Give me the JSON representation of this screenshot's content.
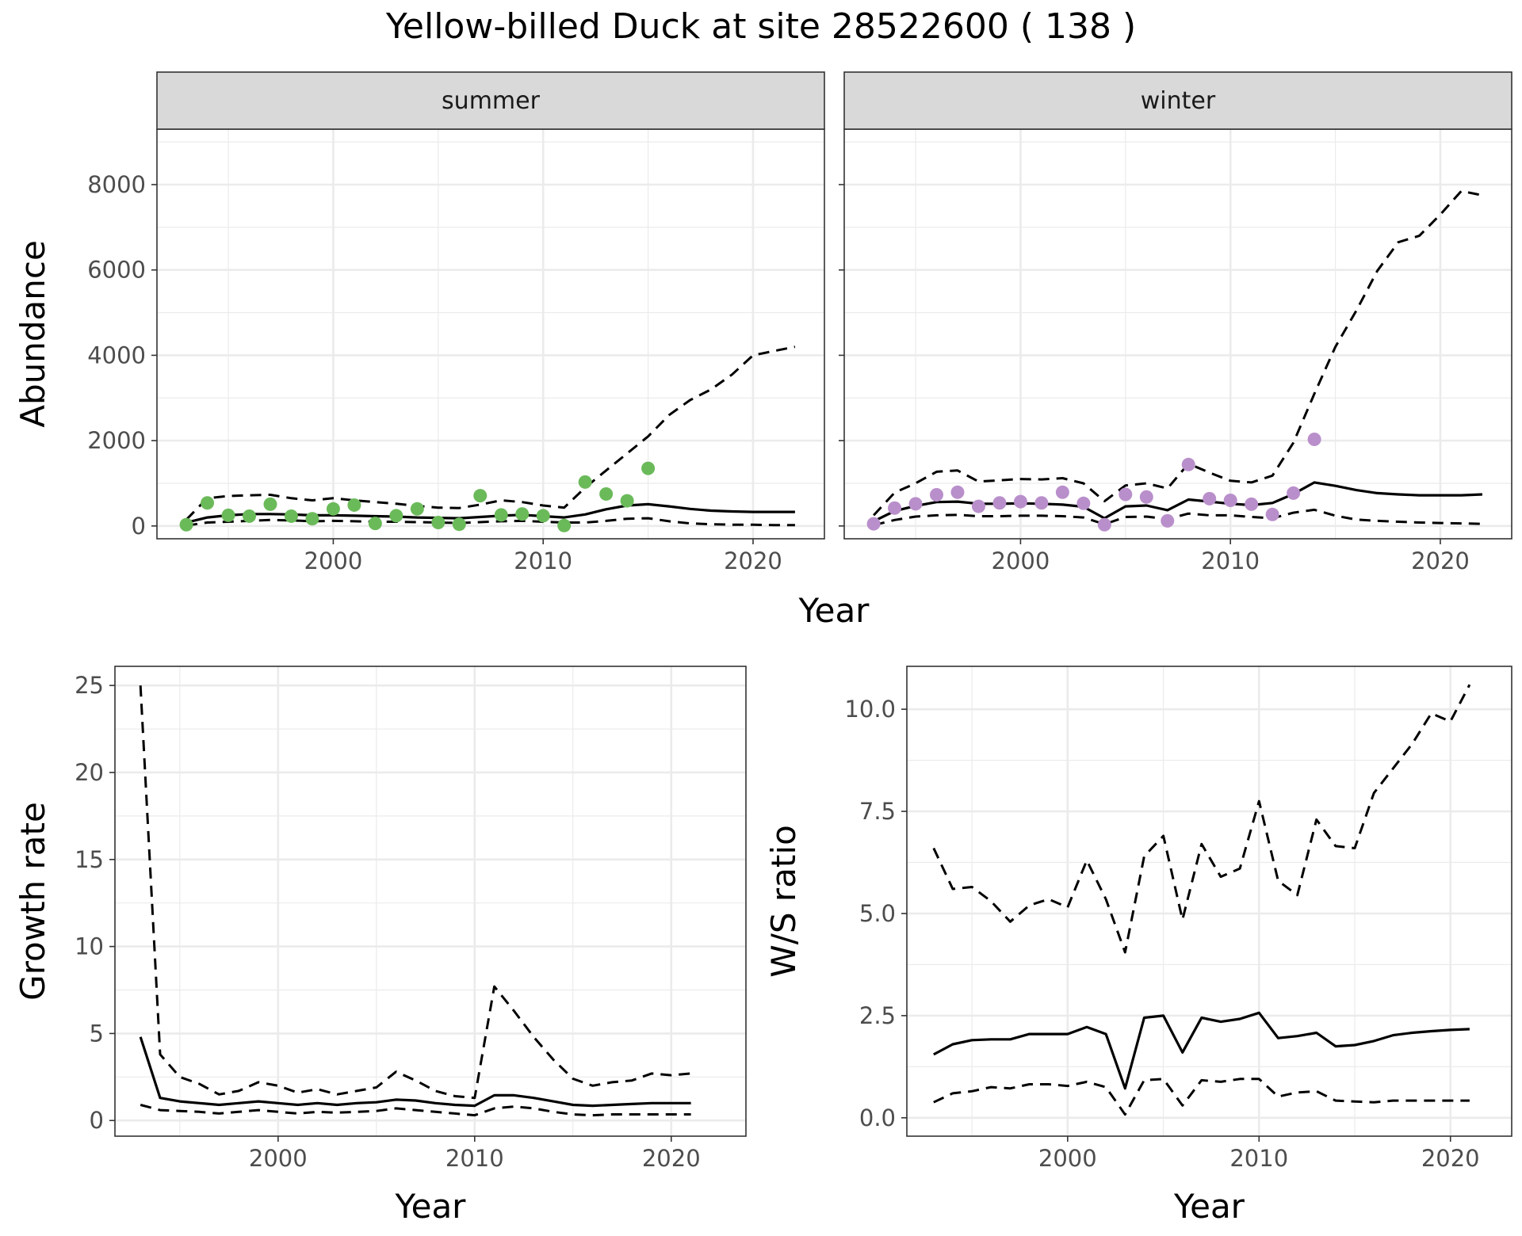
{
  "title": "Yellow-billed Duck at site 28522600 ( 138 )",
  "colors": {
    "summer": "#6BBA5A",
    "winter": "#B98FCB",
    "line": "#000000",
    "strip_fill": "#D9D9D9"
  },
  "chart_data": [
    {
      "id": "abundance",
      "type": "line",
      "ylabel": "Abundance",
      "xlabel": "Year",
      "xlim": [
        1991.6,
        2023.4
      ],
      "ylim": [
        -300,
        9300
      ],
      "x_ticks": [
        2000,
        2010,
        2020
      ],
      "x_tick_labels": [
        "2000",
        "2010",
        "2020"
      ],
      "y_ticks": [
        0,
        2000,
        4000,
        6000,
        8000
      ],
      "y_tick_labels": [
        "0",
        "2000",
        "4000",
        "6000",
        "8000"
      ],
      "grid": true,
      "panels": [
        {
          "strip": "summer",
          "x": [
            1993,
            1994,
            1995,
            1996,
            1997,
            1998,
            1999,
            2000,
            2001,
            2002,
            2003,
            2004,
            2005,
            2006,
            2007,
            2008,
            2009,
            2010,
            2011,
            2012,
            2013,
            2014,
            2015,
            2016,
            2017,
            2018,
            2019,
            2020,
            2021,
            2022
          ],
          "observed": [
            30,
            540,
            250,
            230,
            510,
            230,
            170,
            400,
            490,
            60,
            240,
            400,
            80,
            40,
            710,
            260,
            280,
            240,
            10,
            1030,
            750,
            590,
            1350,
            null,
            null,
            null,
            null,
            null,
            null,
            null
          ],
          "series": [
            {
              "role": "estimate",
              "values": [
                80,
                200,
                250,
                280,
                280,
                270,
                250,
                250,
                240,
                230,
                220,
                200,
                190,
                180,
                210,
                240,
                260,
                230,
                200,
                270,
                390,
                480,
                510,
                460,
                400,
                360,
                340,
                330,
                330,
                330
              ]
            },
            {
              "role": "upper",
              "values": [
                150,
                650,
                700,
                720,
                730,
                650,
                600,
                650,
                600,
                560,
                520,
                470,
                430,
                420,
                500,
                600,
                560,
                480,
                430,
                900,
                1300,
                1700,
                2100,
                2600,
                2950,
                3200,
                3550,
                4000,
                4100,
                4200
              ]
            },
            {
              "role": "lower",
              "values": [
                10,
                80,
                100,
                120,
                140,
                130,
                110,
                120,
                110,
                100,
                100,
                90,
                80,
                70,
                90,
                110,
                120,
                100,
                80,
                80,
                120,
                170,
                180,
                110,
                60,
                40,
                30,
                30,
                20,
                20
              ]
            }
          ]
        },
        {
          "strip": "winter",
          "x": [
            1993,
            1994,
            1995,
            1996,
            1997,
            1998,
            1999,
            2000,
            2001,
            2002,
            2003,
            2004,
            2005,
            2006,
            2007,
            2008,
            2009,
            2010,
            2011,
            2012,
            2013,
            2014,
            2015,
            2016,
            2017,
            2018,
            2019,
            2020,
            2021,
            2022
          ],
          "observed": [
            50,
            420,
            520,
            730,
            790,
            460,
            540,
            570,
            540,
            790,
            530,
            30,
            740,
            680,
            120,
            1440,
            640,
            600,
            510,
            270,
            770,
            2030,
            null,
            null,
            null,
            null,
            null,
            null,
            null,
            null
          ],
          "series": [
            {
              "role": "estimate",
              "values": [
                110,
                350,
                470,
                560,
                570,
                520,
                520,
                530,
                520,
                500,
                450,
                180,
                460,
                480,
                370,
                620,
                570,
                520,
                490,
                540,
                750,
                1020,
                940,
                840,
                770,
                740,
                720,
                720,
                720,
                740
              ]
            },
            {
              "role": "upper",
              "values": [
                250,
                780,
                1000,
                1270,
                1300,
                1040,
                1070,
                1100,
                1090,
                1120,
                1000,
                580,
                950,
                1000,
                880,
                1460,
                1250,
                1060,
                1020,
                1180,
                1950,
                3100,
                4200,
                5050,
                5980,
                6650,
                6800,
                7300,
                7850,
                7750
              ]
            },
            {
              "role": "lower",
              "values": [
                20,
                140,
                220,
                250,
                260,
                230,
                230,
                240,
                240,
                230,
                200,
                40,
                210,
                220,
                160,
                290,
                250,
                250,
                210,
                180,
                310,
                380,
                240,
                150,
                120,
                100,
                80,
                70,
                60,
                50
              ]
            }
          ]
        }
      ]
    },
    {
      "id": "growth",
      "type": "line",
      "ylabel": "Growth rate",
      "xlabel": "Year",
      "xlim": [
        1991.7,
        2023.8
      ],
      "ylim": [
        -0.9,
        26.1
      ],
      "x_ticks": [
        2000,
        2010,
        2020
      ],
      "x_tick_labels": [
        "2000",
        "2010",
        "2020"
      ],
      "y_ticks": [
        0,
        5,
        10,
        15,
        20,
        25
      ],
      "y_tick_labels": [
        "0",
        "5",
        "10",
        "15",
        "20",
        "25"
      ],
      "grid": true,
      "x": [
        1993,
        1994,
        1995,
        1996,
        1997,
        1998,
        1999,
        2000,
        2001,
        2002,
        2003,
        2004,
        2005,
        2006,
        2007,
        2008,
        2009,
        2010,
        2011,
        2012,
        2013,
        2014,
        2015,
        2016,
        2017,
        2018,
        2019,
        2020,
        2021
      ],
      "series": [
        {
          "role": "estimate",
          "values": [
            4.8,
            1.3,
            1.1,
            1.0,
            0.9,
            1.0,
            1.1,
            1.0,
            0.9,
            1.0,
            0.9,
            1.0,
            1.05,
            1.2,
            1.15,
            1.0,
            0.9,
            0.85,
            1.45,
            1.45,
            1.3,
            1.1,
            0.9,
            0.85,
            0.9,
            0.95,
            1.0,
            1.0,
            1.0
          ]
        },
        {
          "role": "upper",
          "values": [
            25.0,
            3.8,
            2.5,
            2.1,
            1.5,
            1.7,
            2.2,
            2.0,
            1.6,
            1.8,
            1.5,
            1.7,
            1.9,
            2.8,
            2.3,
            1.7,
            1.4,
            1.3,
            7.7,
            6.3,
            4.8,
            3.5,
            2.4,
            2.0,
            2.2,
            2.3,
            2.7,
            2.6,
            2.7
          ]
        },
        {
          "role": "lower",
          "values": [
            0.9,
            0.6,
            0.55,
            0.5,
            0.4,
            0.5,
            0.6,
            0.5,
            0.4,
            0.5,
            0.45,
            0.5,
            0.55,
            0.7,
            0.6,
            0.5,
            0.4,
            0.3,
            0.7,
            0.8,
            0.7,
            0.5,
            0.35,
            0.3,
            0.35,
            0.35,
            0.35,
            0.35,
            0.35
          ]
        }
      ]
    },
    {
      "id": "ratio",
      "type": "line",
      "ylabel": "W/S ratio",
      "xlabel": "Year",
      "xlim": [
        1991.6,
        2023.2
      ],
      "ylim": [
        -0.45,
        11.05
      ],
      "x_ticks": [
        2000,
        2010,
        2020
      ],
      "x_tick_labels": [
        "2000",
        "2010",
        "2020"
      ],
      "y_ticks": [
        0,
        2.5,
        5,
        7.5,
        10
      ],
      "y_tick_labels": [
        "0.0",
        "2.5",
        "5.0",
        "7.5",
        "10.0"
      ],
      "grid": true,
      "x": [
        1993,
        1994,
        1995,
        1996,
        1997,
        1998,
        1999,
        2000,
        2001,
        2002,
        2003,
        2004,
        2005,
        2006,
        2007,
        2008,
        2009,
        2010,
        2011,
        2012,
        2013,
        2014,
        2015,
        2016,
        2017,
        2018,
        2019,
        2020,
        2021
      ],
      "series": [
        {
          "role": "estimate",
          "values": [
            1.55,
            1.8,
            1.9,
            1.92,
            1.92,
            2.05,
            2.05,
            2.05,
            2.22,
            2.05,
            0.72,
            2.45,
            2.5,
            1.6,
            2.45,
            2.35,
            2.42,
            2.57,
            1.95,
            2.0,
            2.08,
            1.75,
            1.78,
            1.88,
            2.02,
            2.08,
            2.12,
            2.15,
            2.17
          ]
        },
        {
          "role": "upper",
          "values": [
            6.6,
            5.6,
            5.65,
            5.3,
            4.8,
            5.2,
            5.35,
            5.15,
            6.3,
            5.35,
            4.05,
            6.4,
            6.9,
            4.85,
            6.7,
            5.9,
            6.1,
            7.75,
            5.8,
            5.45,
            7.3,
            6.65,
            6.6,
            7.95,
            8.55,
            9.15,
            9.9,
            9.7,
            10.6
          ]
        },
        {
          "role": "lower",
          "values": [
            0.38,
            0.6,
            0.65,
            0.75,
            0.72,
            0.82,
            0.82,
            0.78,
            0.88,
            0.75,
            0.08,
            0.92,
            0.95,
            0.3,
            0.92,
            0.88,
            0.95,
            0.95,
            0.52,
            0.62,
            0.65,
            0.42,
            0.4,
            0.38,
            0.42,
            0.42,
            0.42,
            0.42,
            0.42
          ]
        }
      ]
    }
  ]
}
